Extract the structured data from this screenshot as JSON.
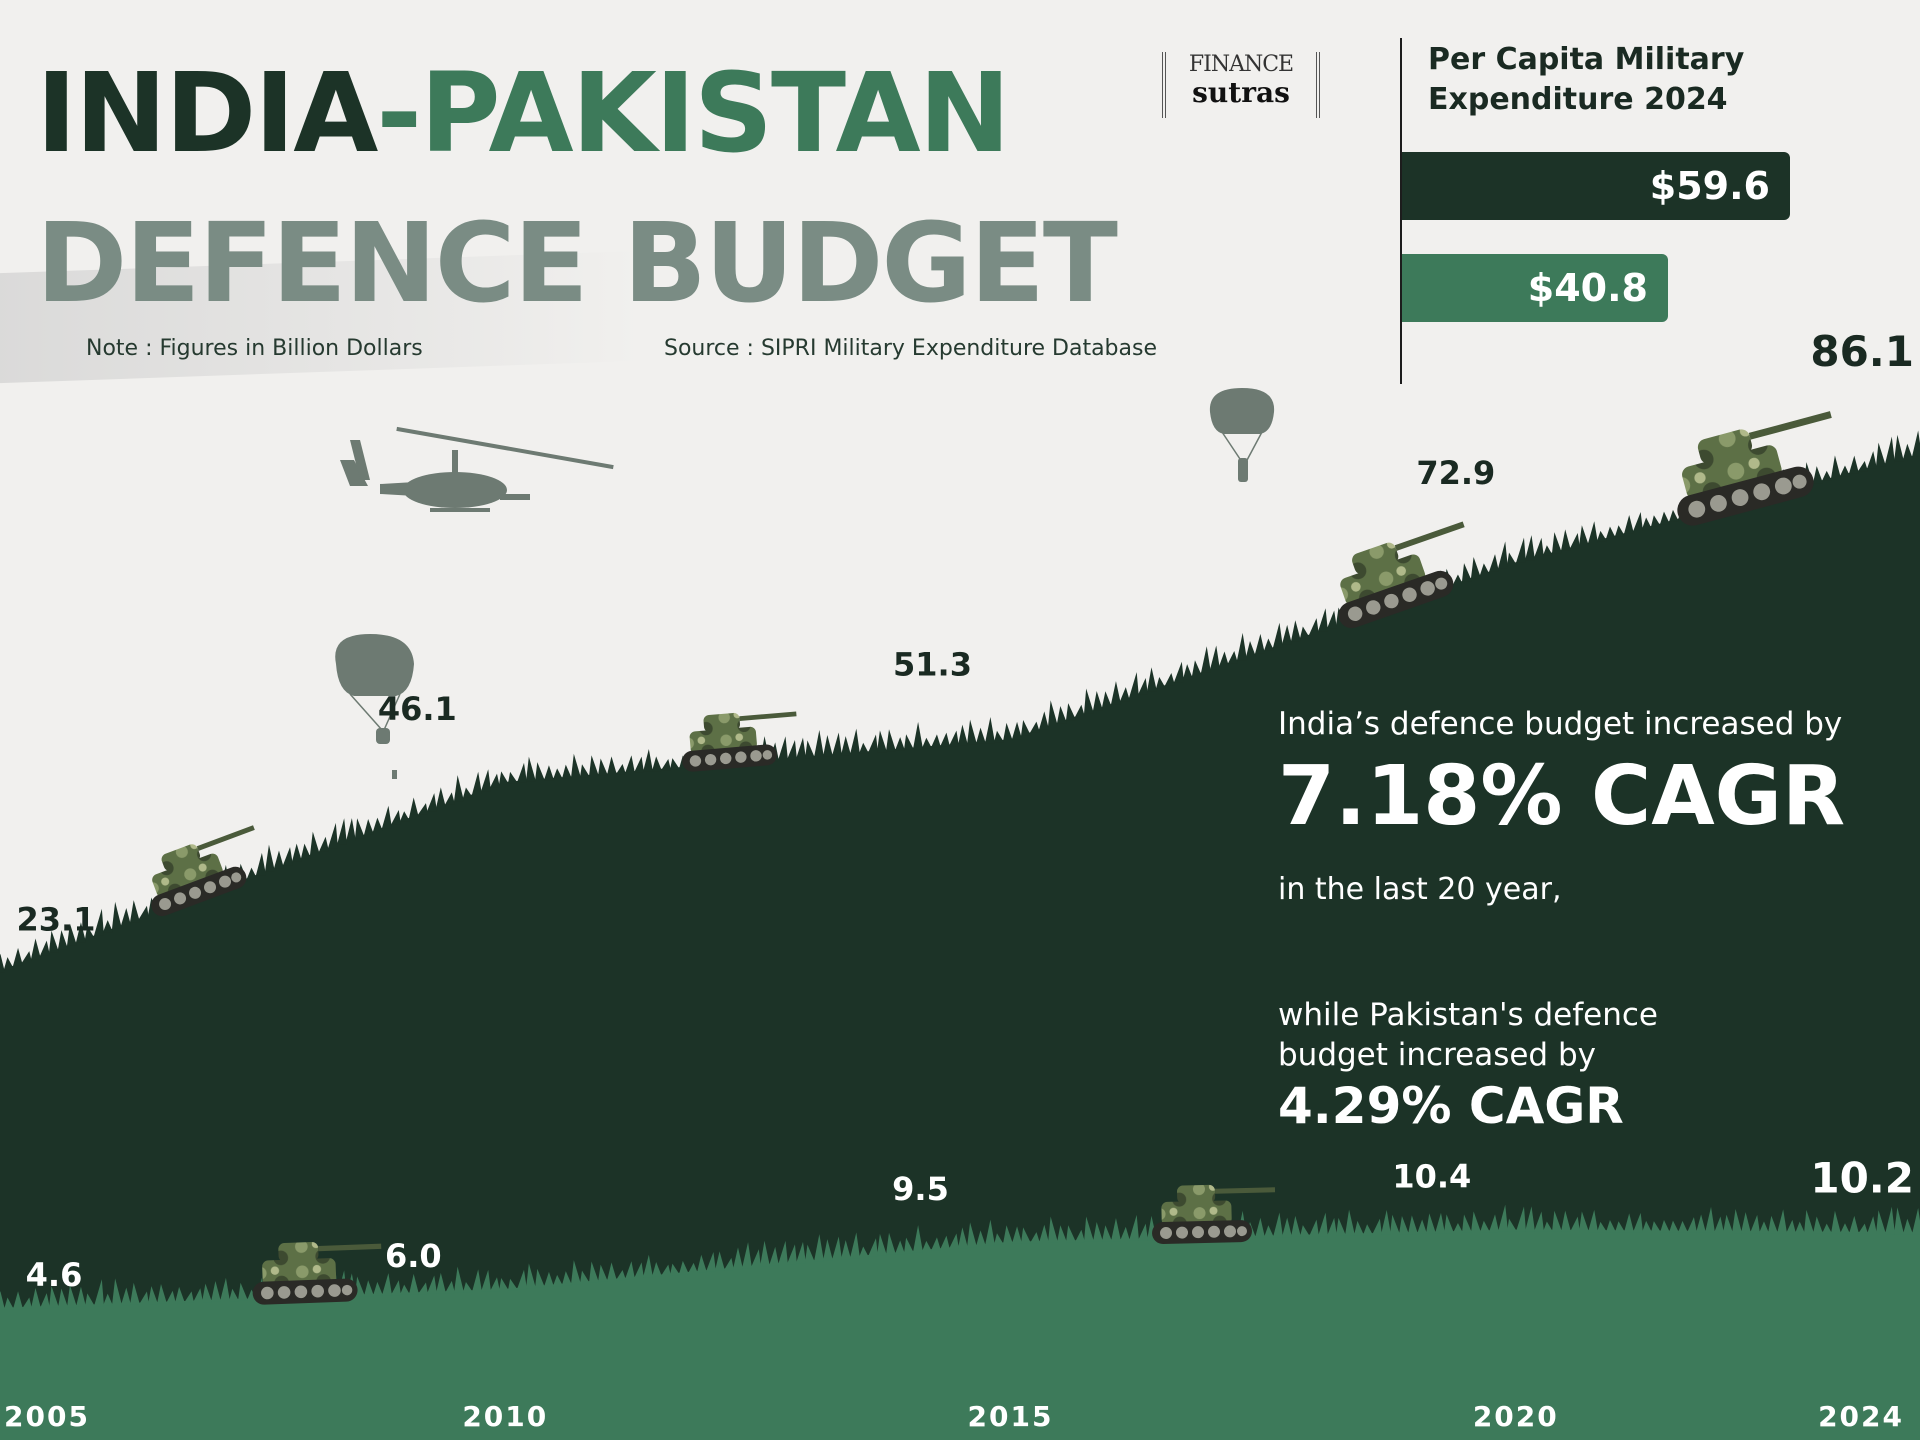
{
  "header": {
    "title_part1": "INDIA",
    "title_dash": "-",
    "title_part2": "PAKISTAN",
    "title_line2": "DEFENCE BUDGET",
    "note": "Note : Figures in Billion Dollars",
    "source": "Source : SIPRI Military Expenditure Database"
  },
  "logo": {
    "line1": "FINANCE",
    "line2": "sutras"
  },
  "per_capita": {
    "title": "Per Capita Military\nExpenditure 2024",
    "india_label": "$59.6",
    "pakistan_label": "$40.8"
  },
  "cagr": {
    "line1": "India’s defence budget increased by",
    "india_cagr": "7.18% CAGR",
    "line2": "in the last 20 year,",
    "line3": "while Pakistan's defence\nbudget increased by",
    "pakistan_cagr": "4.29% CAGR"
  },
  "colors": {
    "india": "#1c3327",
    "pakistan": "#3d7a5a",
    "background": "#f1f0ee",
    "silhouette": "#6d7a72"
  },
  "icons": [
    "helicopter-icon",
    "parachute-icon",
    "tank-icon"
  ],
  "chart_data": [
    {
      "type": "area",
      "x": [
        2005,
        2010,
        2015,
        2020,
        2024
      ],
      "xticks": [
        "2005",
        "2010",
        "2015",
        "2020",
        "2024"
      ],
      "series": [
        {
          "name": "India",
          "values": [
            23.1,
            46.1,
            51.3,
            72.9,
            86.1
          ],
          "labels": [
            "23.1",
            "46.1",
            "51.3",
            "72.9",
            "86.1"
          ]
        },
        {
          "name": "Pakistan",
          "values": [
            4.6,
            6.0,
            9.5,
            10.4,
            10.2
          ],
          "labels": [
            "4.6",
            "6.0",
            "9.5",
            "10.4",
            "10.2"
          ]
        }
      ]
    },
    {
      "type": "bar",
      "title": "Per Capita Military\nExpenditure 2024",
      "values": [
        59.6,
        40.8
      ],
      "value_labels": [
        "$59.6",
        "$40.8"
      ]
    }
  ]
}
